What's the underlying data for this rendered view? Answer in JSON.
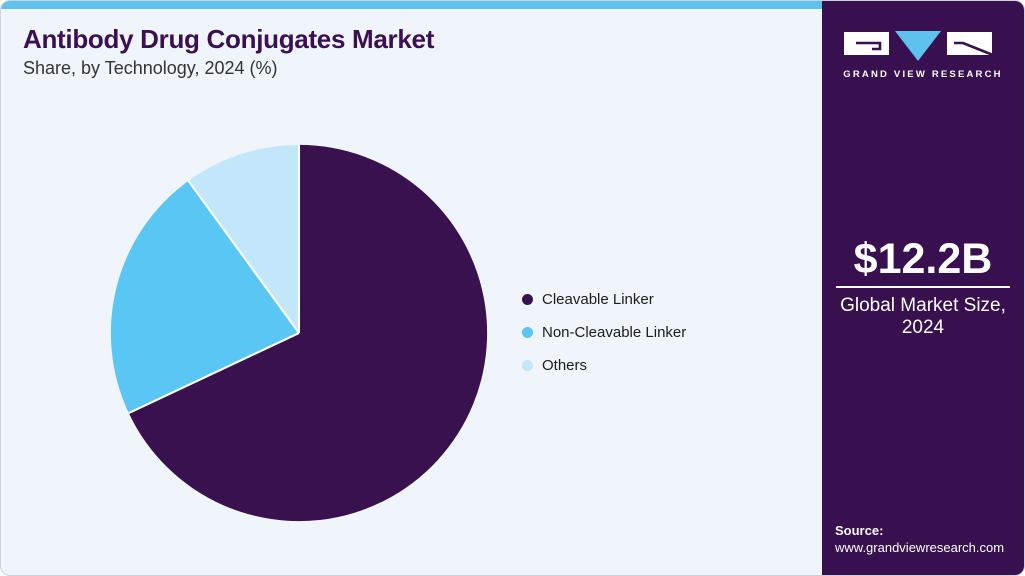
{
  "header": {
    "title": "Antibody Drug Conjugates Market",
    "subtitle": "Share, by Technology, 2024 (%)"
  },
  "chart_data": {
    "type": "pie",
    "title": "Antibody Drug Conjugates Market Share, by Technology, 2024 (%)",
    "categories": [
      "Cleavable Linker",
      "Non-Cleavable Linker",
      "Others"
    ],
    "values": [
      68,
      22,
      10
    ],
    "unit": "%",
    "colors": [
      "#38114e",
      "#59c6f3",
      "#c2e7fa"
    ],
    "start_angle_deg": 0,
    "direction": "clockwise",
    "legend_position": "right",
    "separator_color": "#ffffff"
  },
  "sidebar": {
    "logo_text": "GRAND VIEW RESEARCH",
    "market_size_value": "$12.2B",
    "market_size_label": "Global Market Size, 2024",
    "source_label": "Source:",
    "source_url": "www.grandviewresearch.com"
  },
  "colors": {
    "accent_bar": "#5ec1ee",
    "sidebar_background": "#38104f",
    "main_background": "#eff5fa",
    "title_color": "#3b1053"
  }
}
